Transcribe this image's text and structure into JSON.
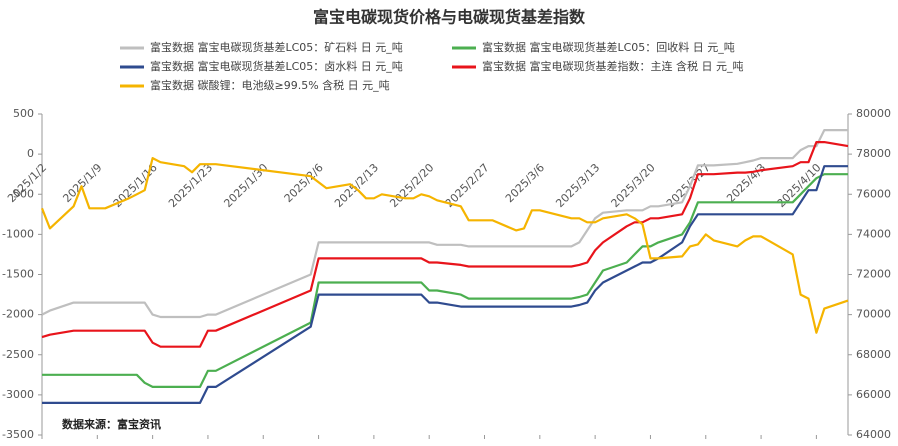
{
  "chart_data": {
    "type": "line",
    "title": "富宝电碳现货价格与电碳现货基差指数",
    "source": "数据来源：富宝资讯",
    "x": [
      "2025/1/2",
      "2025/1/3",
      "2025/1/6",
      "2025/1/7",
      "2025/1/8",
      "2025/1/9",
      "2025/1/10",
      "2025/1/13",
      "2025/1/14",
      "2025/1/15",
      "2025/1/16",
      "2025/1/17",
      "2025/1/20",
      "2025/1/21",
      "2025/1/22",
      "2025/1/23",
      "2025/1/24",
      "2025/2/5",
      "2025/2/6",
      "2025/2/7",
      "2025/2/10",
      "2025/2/11",
      "2025/2/12",
      "2025/2/13",
      "2025/2/14",
      "2025/2/17",
      "2025/2/18",
      "2025/2/19",
      "2025/2/20",
      "2025/2/21",
      "2025/2/24",
      "2025/2/25",
      "2025/2/26",
      "2025/2/27",
      "2025/2/28",
      "2025/3/3",
      "2025/3/4",
      "2025/3/5",
      "2025/3/6",
      "2025/3/7",
      "2025/3/10",
      "2025/3/11",
      "2025/3/12",
      "2025/3/13",
      "2025/3/14",
      "2025/3/17",
      "2025/3/18",
      "2025/3/19",
      "2025/3/20",
      "2025/3/21",
      "2025/3/24",
      "2025/3/25",
      "2025/3/26",
      "2025/3/27",
      "2025/3/28",
      "2025/3/31",
      "2025/4/1",
      "2025/4/2",
      "2025/4/3",
      "2025/4/7",
      "2025/4/8",
      "2025/4/9",
      "2025/4/10",
      "2025/4/11",
      "2025/4/14"
    ],
    "xlim": [
      "2025/1/2",
      "2025/4/14"
    ],
    "xticks": [
      "2025/1/2",
      "2025/1/9",
      "2025/1/16",
      "2025/1/23",
      "2025/1/30",
      "2025/2/6",
      "2025/2/13",
      "2025/2/20",
      "2025/2/27",
      "2025/3/6",
      "2025/3/13",
      "2025/3/20",
      "2025/3/27",
      "2025/4/3",
      "2025/4/10"
    ],
    "ylim": [
      -3500,
      500
    ],
    "yticks": [
      -3500,
      -3000,
      -2500,
      -2000,
      -1500,
      -1000,
      -500,
      0,
      500
    ],
    "y2lim": [
      64000,
      80000
    ],
    "y2ticks": [
      64000,
      66000,
      68000,
      70000,
      72000,
      74000,
      76000,
      78000,
      80000
    ],
    "grid": false,
    "series": [
      {
        "name": "富宝数据 富宝电碳现货基差LC05：矿石料 日 元_吨",
        "color": "#bfbfbf",
        "values": [
          -2000,
          -1950,
          -1850,
          -1850,
          -1850,
          -1850,
          -1850,
          -1850,
          -1850,
          -1850,
          -2000,
          -2030,
          -2030,
          -2030,
          -2030,
          -2000,
          -2000,
          -1500,
          -1100,
          -1100,
          -1100,
          -1100,
          -1100,
          -1100,
          -1100,
          -1100,
          -1100,
          -1100,
          -1100,
          -1130,
          -1130,
          -1150,
          -1150,
          -1150,
          -1150,
          -1150,
          -1150,
          -1150,
          -1150,
          -1150,
          -1150,
          -1100,
          -950,
          -800,
          -730,
          -700,
          -700,
          -700,
          -650,
          -650,
          -600,
          -400,
          -140,
          -140,
          -140,
          -120,
          -100,
          -80,
          -50,
          -50,
          50,
          100,
          100,
          300,
          300
        ]
      },
      {
        "name": "富宝数据 富宝电碳现货基差LC05：回收料 日 元_吨",
        "color": "#4caf50",
        "values": [
          -2750,
          -2750,
          -2750,
          -2750,
          -2750,
          -2750,
          -2750,
          -2750,
          -2750,
          -2850,
          -2900,
          -2900,
          -2900,
          -2900,
          -2900,
          -2700,
          -2700,
          -2100,
          -1600,
          -1600,
          -1600,
          -1600,
          -1600,
          -1600,
          -1600,
          -1600,
          -1600,
          -1600,
          -1700,
          -1700,
          -1750,
          -1800,
          -1800,
          -1800,
          -1800,
          -1800,
          -1800,
          -1800,
          -1800,
          -1800,
          -1800,
          -1780,
          -1750,
          -1600,
          -1450,
          -1350,
          -1250,
          -1150,
          -1150,
          -1100,
          -1000,
          -850,
          -600,
          -600,
          -600,
          -600,
          -600,
          -600,
          -600,
          -600,
          -500,
          -400,
          -300,
          -250,
          -250
        ]
      },
      {
        "name": "富宝数据 富宝电碳现货基差LC05：卤水料 日 元_吨",
        "color": "#2f4b8f",
        "values": [
          -3100,
          -3100,
          -3100,
          -3100,
          -3100,
          -3100,
          -3100,
          -3100,
          -3100,
          -3100,
          -3100,
          -3100,
          -3100,
          -3100,
          -3100,
          -2900,
          -2900,
          -2150,
          -1750,
          -1750,
          -1750,
          -1750,
          -1750,
          -1750,
          -1750,
          -1750,
          -1750,
          -1750,
          -1850,
          -1850,
          -1900,
          -1900,
          -1900,
          -1900,
          -1900,
          -1900,
          -1900,
          -1900,
          -1900,
          -1900,
          -1900,
          -1880,
          -1850,
          -1700,
          -1600,
          -1450,
          -1400,
          -1350,
          -1350,
          -1300,
          -1100,
          -900,
          -750,
          -750,
          -750,
          -750,
          -750,
          -750,
          -750,
          -750,
          -600,
          -450,
          -450,
          -150,
          -150
        ]
      },
      {
        "name": "富宝数据 富宝电碳现货基差指数：主连 含税 日 元_吨",
        "color": "#e8141b",
        "values": [
          -2280,
          -2250,
          -2200,
          -2200,
          -2200,
          -2200,
          -2200,
          -2200,
          -2200,
          -2200,
          -2350,
          -2400,
          -2400,
          -2400,
          -2400,
          -2200,
          -2200,
          -1700,
          -1300,
          -1300,
          -1300,
          -1300,
          -1300,
          -1300,
          -1300,
          -1300,
          -1300,
          -1300,
          -1350,
          -1350,
          -1380,
          -1400,
          -1400,
          -1400,
          -1400,
          -1400,
          -1400,
          -1400,
          -1400,
          -1400,
          -1400,
          -1380,
          -1350,
          -1200,
          -1100,
          -900,
          -850,
          -850,
          -800,
          -800,
          -750,
          -550,
          -250,
          -250,
          -250,
          -230,
          -230,
          -220,
          -200,
          -150,
          -100,
          -100,
          150,
          150,
          100
        ]
      },
      {
        "name": "富宝数据 碳酸锂：电池级≥99.5% 含税 日 元_吨",
        "color": "#f5b400",
        "axis": "y2",
        "values": [
          75300,
          74300,
          75400,
          76400,
          75300,
          75300,
          75300,
          75800,
          76000,
          76200,
          77800,
          77600,
          77400,
          77100,
          77500,
          77500,
          77500,
          76900,
          76600,
          76300,
          76500,
          76200,
          75800,
          75800,
          76000,
          75800,
          75800,
          76000,
          75900,
          75700,
          75400,
          74700,
          74700,
          74700,
          74700,
          74200,
          74300,
          75200,
          75200,
          75100,
          74800,
          74800,
          74600,
          74600,
          74800,
          75000,
          74800,
          74500,
          72800,
          72800,
          72900,
          73400,
          73500,
          74000,
          73700,
          73400,
          73700,
          73900,
          73900,
          73000,
          71000,
          70800,
          69100,
          70300,
          70700
        ]
      }
    ]
  }
}
